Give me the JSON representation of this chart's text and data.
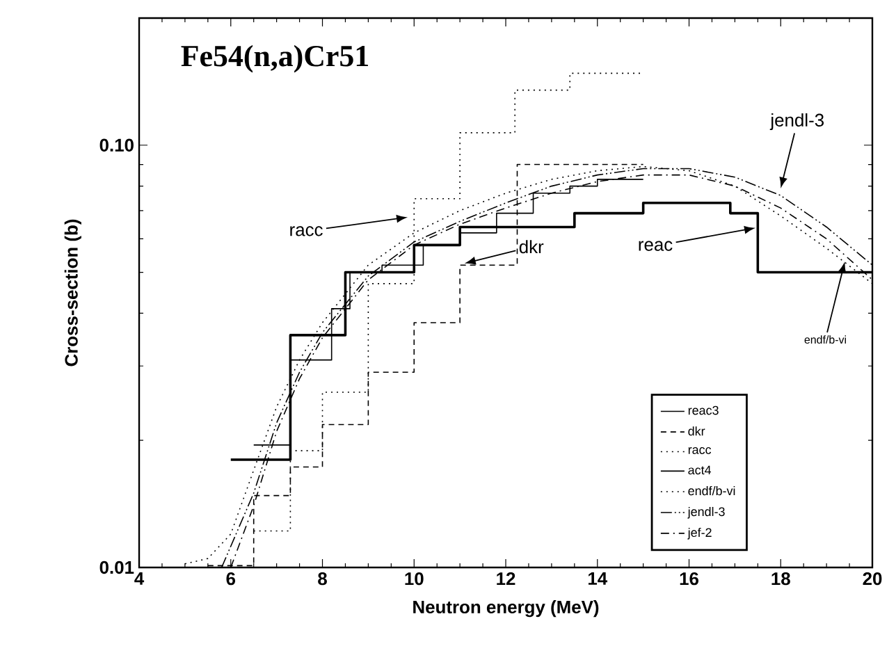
{
  "chart_data": {
    "type": "line",
    "title": "Fe54(n,a)Cr51",
    "xlabel": "Neutron energy (MeV)",
    "ylabel": "Cross-section (b)",
    "xlim": [
      4,
      20
    ],
    "xticks": [
      4,
      6,
      8,
      10,
      12,
      14,
      16,
      18,
      20
    ],
    "ylim": [
      0.01,
      0.2
    ],
    "yticks": [
      {
        "value": 0.01,
        "label": "0.01"
      },
      {
        "value": 0.1,
        "label": "0.10"
      }
    ],
    "log": "y",
    "legend": "bottom right",
    "series": [
      {
        "name": "reac3",
        "type": "step",
        "color": "#000000",
        "line_style": "solid",
        "x": [
          6,
          7.3,
          8.5,
          10,
          11,
          13.5,
          15,
          16.9,
          17.5,
          20
        ],
        "values": [
          0.018,
          0.0355,
          0.05,
          0.058,
          0.064,
          0.069,
          0.073,
          0.069,
          0.05,
          0.05
        ]
      },
      {
        "name": "dkr",
        "type": "step",
        "color": "#000000",
        "line_style": "dashed",
        "x": [
          5.5,
          6.5,
          7.3,
          8.0,
          9.0,
          10.0,
          11.0,
          12.25,
          15.0
        ],
        "values": [
          0.0101,
          0.0148,
          0.0173,
          0.0218,
          0.029,
          0.038,
          0.052,
          0.09,
          0.09
        ]
      },
      {
        "name": "racc",
        "type": "step",
        "color": "#000000",
        "line_style": "dotted",
        "x": [
          6.5,
          7.3,
          8.0,
          9.0,
          10.0,
          11.0,
          12.2,
          13.4,
          15.0
        ],
        "values": [
          0.0122,
          0.0189,
          0.026,
          0.047,
          0.0747,
          0.107,
          0.135,
          0.148,
          0.148
        ]
      },
      {
        "name": "act4",
        "type": "step",
        "color": "#000000",
        "line_style": "solid",
        "x": [
          6.5,
          7.3,
          8.2,
          8.6,
          9.3,
          10.2,
          11.0,
          11.8,
          12.6,
          13.4,
          14.0,
          15.0
        ],
        "values": [
          0.0195,
          0.031,
          0.041,
          0.05,
          0.052,
          0.058,
          0.062,
          0.069,
          0.077,
          0.08,
          0.083,
          0.083
        ]
      },
      {
        "name": "endf/b-vi",
        "color": "#000000",
        "line_style": "dotted",
        "x": [
          5.0,
          5.5,
          6.0,
          6.5,
          7,
          7.5,
          8,
          9,
          10,
          11,
          12,
          13,
          14,
          15,
          16,
          17,
          18,
          19,
          20
        ],
        "values": [
          0.0102,
          0.0105,
          0.012,
          0.017,
          0.024,
          0.031,
          0.038,
          0.052,
          0.062,
          0.07,
          0.077,
          0.083,
          0.087,
          0.089,
          0.087,
          0.08,
          0.068,
          0.057,
          0.047
        ]
      },
      {
        "name": "jendl-3",
        "color": "#000000",
        "line_style": "dashdotdotted",
        "x": [
          5.8,
          6.5,
          7,
          7.5,
          8,
          9,
          10,
          11,
          12,
          13,
          14,
          15,
          16,
          17,
          18,
          19,
          20
        ],
        "values": [
          0.01,
          0.015,
          0.022,
          0.029,
          0.036,
          0.049,
          0.059,
          0.066,
          0.073,
          0.08,
          0.085,
          0.088,
          0.088,
          0.084,
          0.076,
          0.064,
          0.052
        ]
      },
      {
        "name": "jef-2",
        "color": "#000000",
        "line_style": "dashdot",
        "x": [
          6.0,
          6.5,
          7.0,
          7.5,
          8.0,
          9.0,
          10.0,
          11.0,
          12.0,
          13.0,
          14.0,
          15.0,
          16.0,
          17.0,
          18.0,
          19.0,
          20.0
        ],
        "values": [
          0.01,
          0.014,
          0.021,
          0.028,
          0.035,
          0.048,
          0.058,
          0.065,
          0.071,
          0.077,
          0.082,
          0.085,
          0.085,
          0.08,
          0.071,
          0.06,
          0.048
        ]
      }
    ],
    "annotations": [
      {
        "text": "racc",
        "x": 9.86,
        "y": 0.0675
      },
      {
        "text": "dkr",
        "x": 11.1,
        "y": 0.0525
      },
      {
        "text": "reac",
        "x": 17.45,
        "y": 0.0637
      },
      {
        "text": "jendl-3",
        "x": 18.0,
        "y": 0.079
      },
      {
        "text": "endf/b-vi",
        "x": 19.4,
        "y": 0.053
      }
    ]
  }
}
